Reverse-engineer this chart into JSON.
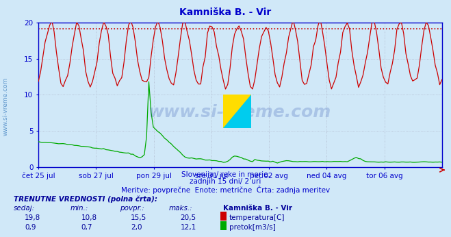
{
  "title": "Kamniška B. - Vir",
  "bg_color": "#d0e8f8",
  "plot_bg_color": "#d0e8f8",
  "x_labels": [
    "čet 25 jul",
    "sob 27 jul",
    "pon 29 jul",
    "sre 31 jul",
    "pet 02 avg",
    "ned 04 avg",
    "tor 06 avg"
  ],
  "y_ticks": [
    0,
    5,
    10,
    15,
    20
  ],
  "y_lim": [
    0,
    20
  ],
  "temp_color": "#cc0000",
  "flow_color": "#00aa00",
  "axis_color": "#0000cc",
  "grid_color": "#b0b8cc",
  "dotted_line_color": "#cc0000",
  "dotted_line_value": 19.1,
  "watermark": "www.si-vreme.com",
  "subtitle1": "Slovenija / reke in morje.",
  "subtitle2": "zadnjih 15 dni/ 2 uri",
  "subtitle3": "Meritve: povprečne  Enote: metrične  Črta: zadnja meritev",
  "footer_title": "TRENUTNE VREDNOSTI (polna črta):",
  "col_headers": [
    "sedaj:",
    "min.:",
    "povpr.:",
    "maks.:",
    "Kamniška B. - Vir"
  ],
  "row_temp": [
    "19,8",
    "10,8",
    "15,5",
    "20,5",
    "temperatura[C]"
  ],
  "row_flow": [
    "0,9",
    "0,7",
    "2,0",
    "12,1",
    "pretok[m3/s]"
  ],
  "n_points": 180,
  "logo_color_blue": "#1a3fa0",
  "logo_color_yellow": "#ffdd00",
  "logo_color_cyan": "#00ccee",
  "watermark_color": "#2244aa",
  "side_text_color": "#3377bb"
}
